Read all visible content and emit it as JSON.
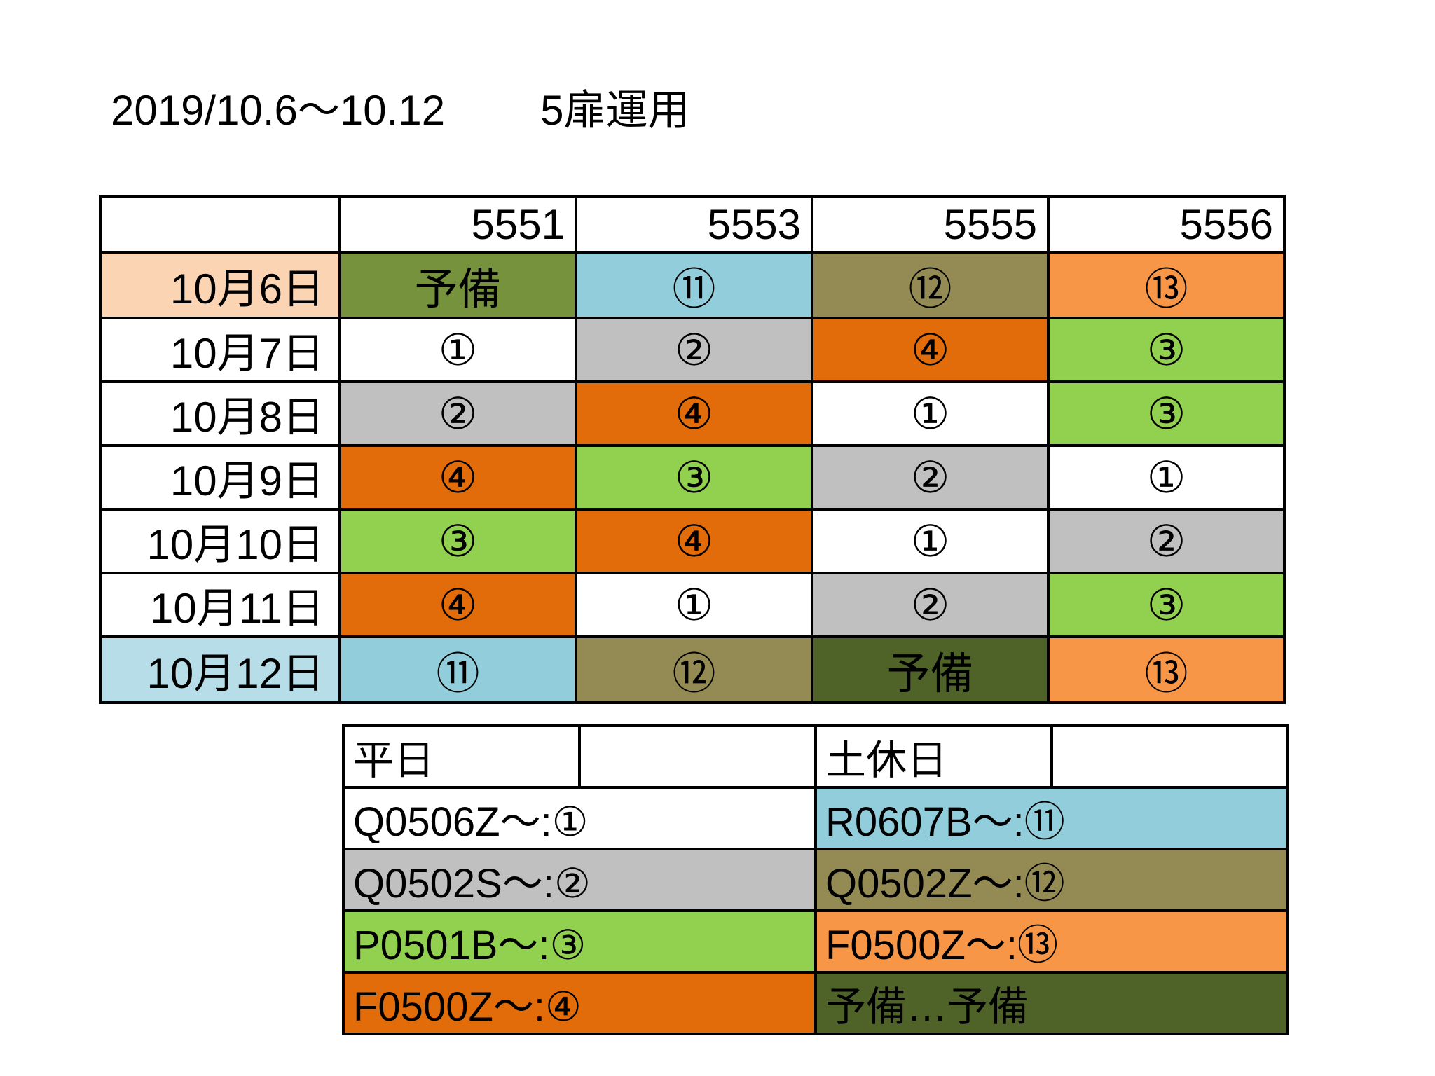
{
  "title": {
    "period": "2019/10.6～10.12",
    "label": "5扉運用"
  },
  "colors": {
    "white": "#ffffff",
    "gray": "#c0c0c0",
    "lightgreen": "#92d050",
    "orange": "#e36c0a",
    "lightblue": "#92cddc",
    "olive": "#948a54",
    "lightorange": "#f79646",
    "darkgreen": "#4f6228",
    "yobi1": "#76923c",
    "peach": "#fbd4b4",
    "paleblue": "#b7dee8"
  },
  "schedule": {
    "columns": [
      "",
      "5551",
      "5553",
      "5555",
      "5556"
    ],
    "rows": [
      {
        "date": "10月6日",
        "date_color": "peach",
        "cells": [
          {
            "text": "予備",
            "color": "yobi1"
          },
          {
            "text": "⑪",
            "color": "lightblue"
          },
          {
            "text": "⑫",
            "color": "olive"
          },
          {
            "text": "⑬",
            "color": "lightorange"
          }
        ]
      },
      {
        "date": "10月7日",
        "date_color": "white",
        "cells": [
          {
            "text": "①",
            "color": "white"
          },
          {
            "text": "②",
            "color": "gray"
          },
          {
            "text": "④",
            "color": "orange"
          },
          {
            "text": "③",
            "color": "lightgreen"
          }
        ]
      },
      {
        "date": "10月8日",
        "date_color": "white",
        "cells": [
          {
            "text": "②",
            "color": "gray"
          },
          {
            "text": "④",
            "color": "orange"
          },
          {
            "text": "①",
            "color": "white"
          },
          {
            "text": "③",
            "color": "lightgreen"
          }
        ]
      },
      {
        "date": "10月9日",
        "date_color": "white",
        "cells": [
          {
            "text": "④",
            "color": "orange"
          },
          {
            "text": "③",
            "color": "lightgreen"
          },
          {
            "text": "②",
            "color": "gray"
          },
          {
            "text": "①",
            "color": "white"
          }
        ]
      },
      {
        "date": "10月10日",
        "date_color": "white",
        "cells": [
          {
            "text": "③",
            "color": "lightgreen"
          },
          {
            "text": "④",
            "color": "orange"
          },
          {
            "text": "①",
            "color": "white"
          },
          {
            "text": "②",
            "color": "gray"
          }
        ]
      },
      {
        "date": "10月11日",
        "date_color": "white",
        "cells": [
          {
            "text": "④",
            "color": "orange"
          },
          {
            "text": "①",
            "color": "white"
          },
          {
            "text": "②",
            "color": "gray"
          },
          {
            "text": "③",
            "color": "lightgreen"
          }
        ]
      },
      {
        "date": "10月12日",
        "date_color": "paleblue",
        "cells": [
          {
            "text": "⑪",
            "color": "lightblue"
          },
          {
            "text": "⑫",
            "color": "olive"
          },
          {
            "text": "予備",
            "color": "darkgreen"
          },
          {
            "text": "⑬",
            "color": "lightorange"
          }
        ]
      }
    ]
  },
  "legend": {
    "weekday_header": "平日",
    "holiday_header": "土休日",
    "rows": [
      {
        "weekday": {
          "text": "Q0506Z～:①",
          "color": "white"
        },
        "holiday": {
          "text": "R0607B～:⑪",
          "color": "lightblue"
        }
      },
      {
        "weekday": {
          "text": "Q0502S～:②",
          "color": "gray"
        },
        "holiday": {
          "text": "Q0502Z～:⑫",
          "color": "olive"
        }
      },
      {
        "weekday": {
          "text": "P0501B～:③",
          "color": "lightgreen"
        },
        "holiday": {
          "text": "F0500Z～:⑬",
          "color": "lightorange"
        }
      },
      {
        "weekday": {
          "text": "F0500Z～:④",
          "color": "orange"
        },
        "holiday": {
          "text": "予備…予備",
          "color": "darkgreen"
        }
      }
    ]
  }
}
